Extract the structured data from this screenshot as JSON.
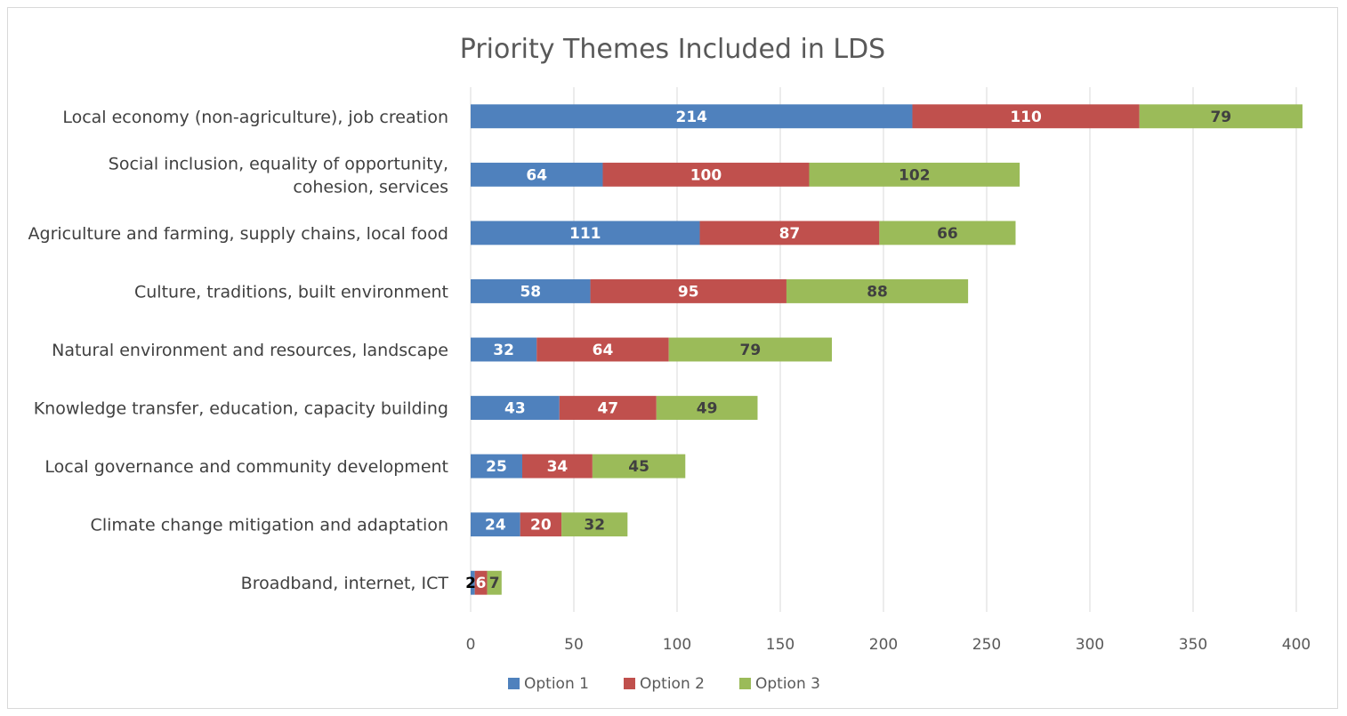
{
  "chart_data": {
    "type": "bar",
    "orientation": "horizontal",
    "stacked": true,
    "title": "Priority Themes Included in LDS",
    "xlabel": "",
    "ylabel": "",
    "categories": [
      [
        "Local economy (non-agriculture), job creation"
      ],
      [
        "Social inclusion, equality of opportunity,",
        "cohesion, services"
      ],
      [
        "Agriculture and farming, supply chains, local food"
      ],
      [
        "Culture, traditions, built environment"
      ],
      [
        "Natural environment and resources, landscape"
      ],
      [
        "Knowledge transfer, education, capacity building"
      ],
      [
        "Local governance and community development"
      ],
      [
        "Climate change mitigation and adaptation"
      ],
      [
        "Broadband, internet, ICT"
      ]
    ],
    "series": [
      {
        "name": "Option 1",
        "color": "#4f81bd",
        "label_color": "#ffffff",
        "values": [
          214,
          64,
          111,
          58,
          32,
          43,
          25,
          24,
          2
        ]
      },
      {
        "name": "Option 2",
        "color": "#c0504d",
        "label_color": "#ffffff",
        "values": [
          110,
          100,
          87,
          95,
          64,
          47,
          34,
          20,
          6
        ]
      },
      {
        "name": "Option 3",
        "color": "#9bbb59",
        "label_color": "#404040",
        "values": [
          79,
          102,
          66,
          88,
          79,
          49,
          45,
          32,
          7
        ]
      }
    ],
    "xlim": [
      0,
      400
    ],
    "xticks": [
      0,
      50,
      100,
      150,
      200,
      250,
      300,
      350,
      400
    ],
    "grid": true,
    "legend_position": "bottom"
  }
}
